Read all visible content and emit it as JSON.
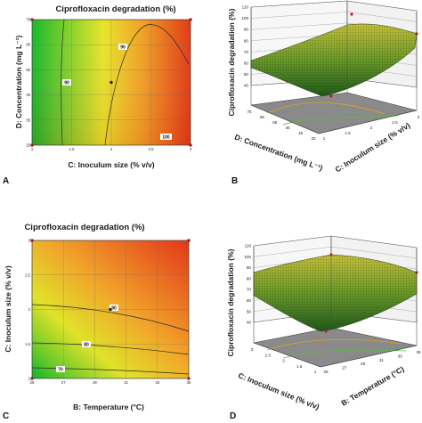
{
  "figure": {
    "panel_letters": [
      "A",
      "B",
      "C",
      "D"
    ]
  },
  "chart_data": [
    {
      "panel": "A",
      "type": "heatmap",
      "subtype": "contour",
      "title": "Ciprofloxacin degradation (%)",
      "xlabel": "C: Inoculum size  (% v/v)",
      "ylabel": "D: Concentration (mg L⁻¹)",
      "xlim": [
        1,
        3
      ],
      "ylim": [
        25,
        75
      ],
      "x_ticks": [
        "1",
        "1.5",
        "2",
        "2.5",
        "3"
      ],
      "y_ticks": [
        "25",
        "35",
        "45",
        "55",
        "65",
        "75"
      ],
      "contour_labels": [
        "90",
        "90",
        "100"
      ],
      "colors": {
        "low": "#1fbf2a",
        "mid": "#e6e62a",
        "high": "#e23a14"
      },
      "design_point": {
        "x": 2,
        "y": 50
      },
      "grid": true
    },
    {
      "panel": "B",
      "type": "heatmap",
      "subtype": "surface3d",
      "zlabel": "Ciprofloxacin degradation (%)",
      "xlabel": "D: Concentration (mg L⁻¹)",
      "ylabel": "C: Inoculum size  (% v/v)",
      "z_ticks": [
        "40",
        "50",
        "60",
        "70",
        "80",
        "90",
        "100",
        "110"
      ],
      "x_ticks": [
        "75",
        "65",
        "55",
        "45",
        "35",
        "25"
      ],
      "y_ticks": [
        "1",
        "1.5",
        "2",
        "2.5",
        "3"
      ],
      "zlim": [
        40,
        110
      ]
    },
    {
      "panel": "C",
      "type": "heatmap",
      "subtype": "contour",
      "title": "Ciprofloxacin degradation (%)",
      "xlabel": "B: Temperature  (°C)",
      "ylabel": "C: Inoculum size  (% v/v)",
      "xlim": [
        25,
        35
      ],
      "ylim": [
        1,
        3
      ],
      "x_ticks": [
        "25",
        "27",
        "29",
        "31",
        "33",
        "35"
      ],
      "y_ticks": [
        "1",
        "1.5",
        "2",
        "2.5",
        "3"
      ],
      "contour_labels": [
        "90",
        "80",
        "70"
      ],
      "colors": {
        "low": "#1fbf2a",
        "mid": "#e6e62a",
        "high": "#e23a14"
      },
      "design_point": {
        "x": 30,
        "y": 2
      },
      "grid": true
    },
    {
      "panel": "D",
      "type": "heatmap",
      "subtype": "surface3d",
      "zlabel": "Ciprofloxacin degradation (%)",
      "xlabel": "C: Inoculum size  (% v/v)",
      "ylabel": "B: Temperature  (°C)",
      "z_ticks": [
        "40",
        "50",
        "60",
        "70",
        "80",
        "90",
        "100",
        "110"
      ],
      "x_ticks": [
        "3",
        "2.5",
        "2",
        "1.5",
        "1"
      ],
      "y_ticks": [
        "25",
        "27",
        "29",
        "31",
        "33",
        "35"
      ],
      "zlim": [
        40,
        110
      ]
    }
  ]
}
